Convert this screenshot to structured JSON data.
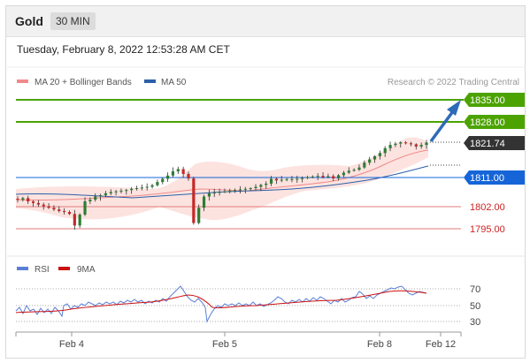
{
  "header": {
    "title": "Gold",
    "timeframe": "30 MIN"
  },
  "datetime": "Tuesday, February 8, 2022 12:53:28 AM CET",
  "legend": {
    "ma20": {
      "label": "MA 20 + Bollinger Bands",
      "color": "#f08a8a"
    },
    "ma50": {
      "label": "MA 50",
      "color": "#2d5fa8"
    },
    "credit": "Research © 2022 Trading Central"
  },
  "price_levels": [
    {
      "value": "1835.00",
      "color": "#4ca300",
      "kind": "resistance"
    },
    {
      "value": "1828.00",
      "color": "#4ca300",
      "kind": "resistance"
    },
    {
      "value": "1821.74",
      "color": "#333333",
      "kind": "last-price"
    },
    {
      "value": "1811.00",
      "color": "#1565d8",
      "kind": "pivot"
    },
    {
      "value": "1802.00",
      "color": "#cc2222",
      "kind": "support"
    },
    {
      "value": "1795.00",
      "color": "#cc2222",
      "kind": "support"
    }
  ],
  "rsi_legend": {
    "rsi": {
      "label": "RSI",
      "color": "#5b7fd6"
    },
    "ma9": {
      "label": "9MA",
      "color": "#cc1111"
    }
  },
  "rsi_levels": [
    "70",
    "50",
    "30"
  ],
  "x_axis": {
    "labels": [
      "Feb 4",
      "Feb 5",
      "Feb 8",
      "Feb 12"
    ]
  },
  "chart_data": {
    "type": "candlestick",
    "instrument": "Gold",
    "interval": "30 MIN",
    "ylim": [
      1790,
      1840
    ],
    "levels": [
      1835.0,
      1828.0,
      1821.74,
      1811.0,
      1802.0,
      1795.0
    ],
    "close_path": [
      1804,
      1804.5,
      1803.5,
      1803,
      1802.5,
      1802,
      1801.5,
      1801,
      1800.5,
      1800.2,
      1799.6,
      1796,
      1799.4,
      1803.5,
      1804,
      1805,
      1805.4,
      1806,
      1806.4,
      1806.6,
      1806.8,
      1807,
      1807.4,
      1807.6,
      1807.8,
      1808,
      1808.5,
      1809.5,
      1810.5,
      1811.5,
      1812.8,
      1813.5,
      1812,
      1810.6,
      1796.8,
      1801.5,
      1805,
      1806,
      1806.2,
      1806.4,
      1806.6,
      1806.8,
      1807,
      1807.2,
      1807.4,
      1807.6,
      1808,
      1808.6,
      1809,
      1810.5,
      1810,
      1810.2,
      1810.4,
      1810.4,
      1810.5,
      1810.7,
      1811,
      1811.2,
      1811.4,
      1811,
      1811.3,
      1810.6,
      1811.6,
      1812.4,
      1813,
      1813.3,
      1814,
      1815.5,
      1816.5,
      1817.5,
      1818.5,
      1820,
      1821,
      1821.4,
      1821.8,
      1821.5,
      1821.2,
      1820.5,
      1821,
      1821.74
    ],
    "rsi": {
      "levels": [
        70,
        50,
        30
      ]
    }
  }
}
